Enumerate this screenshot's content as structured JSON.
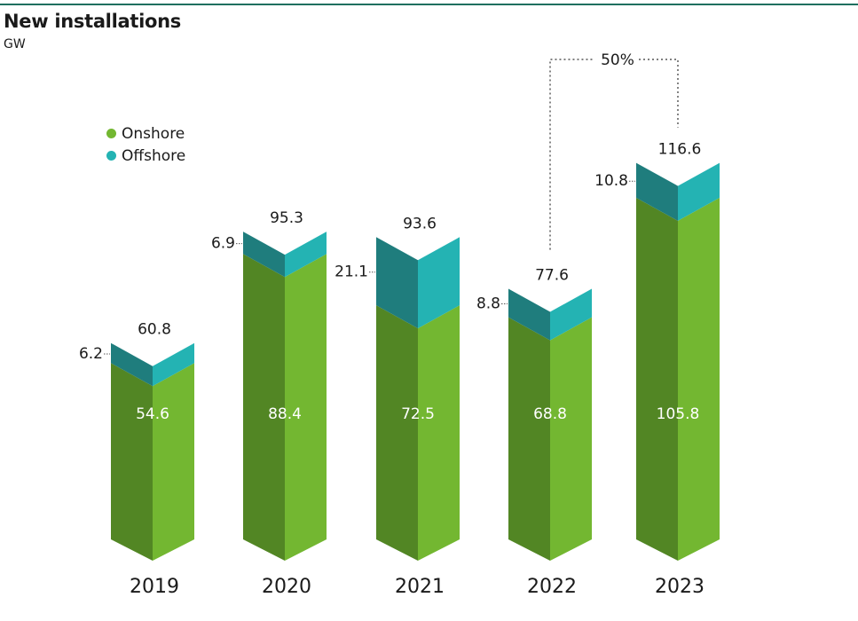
{
  "chart_data": {
    "type": "bar",
    "title": "New installations",
    "unit": "GW",
    "categories": [
      "2019",
      "2020",
      "2021",
      "2022",
      "2023"
    ],
    "series": [
      {
        "name": "Onshore",
        "values": [
          54.6,
          88.4,
          72.5,
          68.8,
          105.8
        ]
      },
      {
        "name": "Offshore",
        "values": [
          6.2,
          6.9,
          21.1,
          8.8,
          10.8
        ]
      }
    ],
    "totals": [
      60.8,
      95.3,
      93.6,
      77.6,
      116.6
    ],
    "value_labels": {
      "onshore": [
        "54.6",
        "88.4",
        "72.5",
        "68.8",
        "105.8"
      ],
      "offshore": [
        "6.2",
        "6.9",
        "21.1",
        "8.8",
        "10.8"
      ],
      "totals": [
        "60.8",
        "95.3",
        "93.6",
        "77.6",
        "116.6"
      ]
    },
    "annotation": {
      "text": "50%",
      "from": "2022",
      "to": "2023"
    },
    "legend_placement": "top-left",
    "stacked": true,
    "grid": false
  },
  "colors": {
    "onshore_dark": "#528624",
    "onshore_light": "#73b731",
    "offshore_dark": "#1f7d7d",
    "offshore_light": "#24b3b3",
    "rule": "#1f6f5f"
  }
}
